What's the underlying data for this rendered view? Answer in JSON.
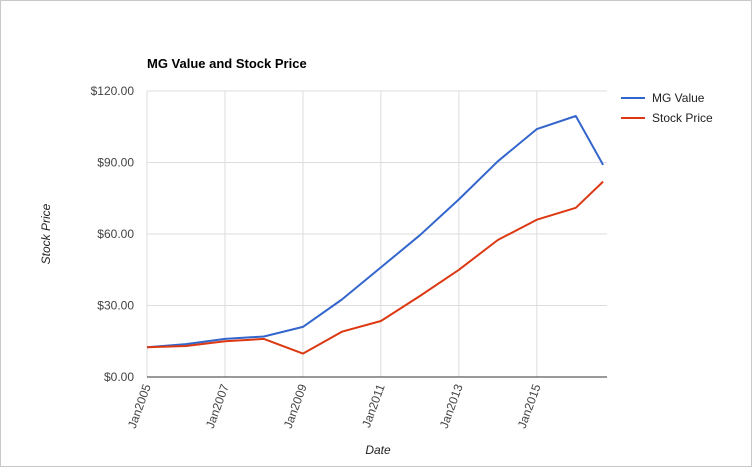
{
  "chart_data": {
    "type": "line",
    "title": "MG Value and Stock Price",
    "xlabel": "Date",
    "ylabel": "Stock Price",
    "xlim": [
      2005,
      2016.8
    ],
    "ylim": [
      0,
      120
    ],
    "y_ticks": [
      0,
      30,
      60,
      90,
      120
    ],
    "y_tick_labels": [
      "$0.00",
      "$30.00",
      "$60.00",
      "$90.00",
      "$120.00"
    ],
    "x_ticks": [
      2005,
      2007,
      2009,
      2011,
      2013,
      2015
    ],
    "x_tick_labels": [
      "Jan2005",
      "Jan2007",
      "Jan2009",
      "Jan2011",
      "Jan2013",
      "Jan2015"
    ],
    "x_tick_label_rotation_deg": -70,
    "grid": true,
    "legend_position": "right",
    "series": [
      {
        "name": "MG Value",
        "color": "#3366cc",
        "x": [
          2005,
          2006,
          2007,
          2008,
          2009,
          2010,
          2011,
          2012,
          2013,
          2014,
          2015,
          2016,
          2016.7
        ],
        "y": [
          12.5,
          13.8,
          16.0,
          17.0,
          21.0,
          32.5,
          46.0,
          59.5,
          74.5,
          90.5,
          104.0,
          109.5,
          89.0
        ]
      },
      {
        "name": "Stock Price",
        "color": "#dc3912",
        "x": [
          2005,
          2006,
          2007,
          2008,
          2009,
          2010,
          2011,
          2012,
          2013,
          2014,
          2015,
          2016,
          2016.7
        ],
        "y": [
          12.5,
          13.0,
          15.0,
          16.0,
          9.8,
          19.0,
          23.5,
          34.0,
          45.0,
          57.5,
          66.0,
          71.0,
          82.0
        ]
      }
    ]
  }
}
